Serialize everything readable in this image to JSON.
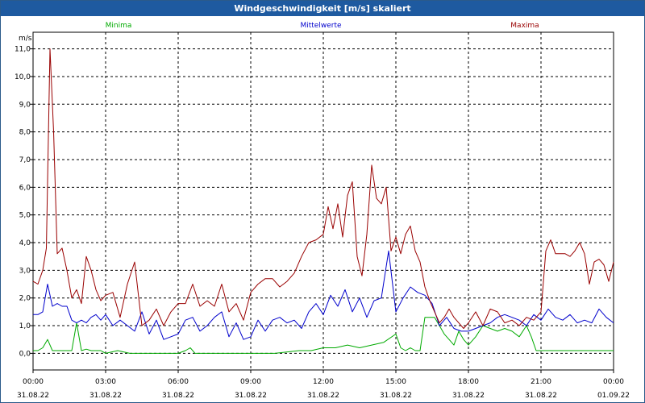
{
  "window": {
    "title": "Windgeschwindigkeit [m/s] skaliert"
  },
  "chart_data": {
    "type": "line",
    "title": "Windgeschwindigkeit [m/s] skaliert",
    "ylabel": "m/s",
    "ylim": [
      -0.6,
      11.6
    ],
    "y_ticks": [
      0.0,
      1.0,
      2.0,
      3.0,
      4.0,
      5.0,
      6.0,
      7.0,
      8.0,
      9.0,
      10.0,
      11.0
    ],
    "y_tick_labels": [
      "0,0",
      "1,0",
      "2,0",
      "3,0",
      "4,0",
      "5,0",
      "6,0",
      "7,0",
      "8,0",
      "9,0",
      "10,0",
      "11,0"
    ],
    "xlim": [
      0,
      24
    ],
    "x_ticks": [
      0,
      3,
      6,
      9,
      12,
      15,
      18,
      21,
      24
    ],
    "x_tick_times": [
      "00:00",
      "03:00",
      "06:00",
      "09:00",
      "12:00",
      "15:00",
      "18:00",
      "21:00",
      "00:00"
    ],
    "x_tick_dates": [
      "31.08.22",
      "31.08.22",
      "31.08.22",
      "31.08.22",
      "31.08.22",
      "31.08.22",
      "31.08.22",
      "31.08.22",
      "01.09.22"
    ],
    "grid": true,
    "legend_position": "top",
    "series": [
      {
        "name": "Minima",
        "color": "#00aa00",
        "x": [
          0,
          0.2,
          0.4,
          0.6,
          0.8,
          1.0,
          1.2,
          1.4,
          1.6,
          1.8,
          2.0,
          2.2,
          2.4,
          2.6,
          2.8,
          3.0,
          3.5,
          4.0,
          4.5,
          5.0,
          5.5,
          6.0,
          6.3,
          6.5,
          6.7,
          7.0,
          8.0,
          9.0,
          10.0,
          11.0,
          11.5,
          12.0,
          12.5,
          13.0,
          13.5,
          14.0,
          14.5,
          15.0,
          15.2,
          15.4,
          15.6,
          15.8,
          16.0,
          16.2,
          16.4,
          16.6,
          16.8,
          17.0,
          17.2,
          17.4,
          17.6,
          17.8,
          18.0,
          18.3,
          18.6,
          18.9,
          19.2,
          19.5,
          19.8,
          20.1,
          20.4,
          20.6,
          20.8,
          21.0,
          21.5,
          22.0,
          22.5,
          23.0,
          23.5,
          24.0
        ],
        "y": [
          0.1,
          0.1,
          0.2,
          0.5,
          0.1,
          0.1,
          0.1,
          0.1,
          0.1,
          1.1,
          0.1,
          0.15,
          0.1,
          0.1,
          0.1,
          0.0,
          0.1,
          0.0,
          0.0,
          0.0,
          0.0,
          0.0,
          0.1,
          0.2,
          0.0,
          0.0,
          0.0,
          0.0,
          0.0,
          0.1,
          0.1,
          0.2,
          0.2,
          0.3,
          0.2,
          0.3,
          0.4,
          0.7,
          0.2,
          0.1,
          0.2,
          0.1,
          0.1,
          1.3,
          1.3,
          1.3,
          1.0,
          0.7,
          0.5,
          0.3,
          0.8,
          0.5,
          0.3,
          0.6,
          1.0,
          0.9,
          0.8,
          0.9,
          0.8,
          0.6,
          1.0,
          0.6,
          0.1,
          0.1,
          0.1,
          0.1,
          0.1,
          0.1,
          0.1,
          0.1
        ]
      },
      {
        "name": "Mittelwerte",
        "color": "#0000cc",
        "x": [
          0,
          0.2,
          0.4,
          0.6,
          0.8,
          1.0,
          1.2,
          1.4,
          1.6,
          1.8,
          2.0,
          2.2,
          2.4,
          2.6,
          2.8,
          3.0,
          3.3,
          3.6,
          3.9,
          4.2,
          4.5,
          4.8,
          5.1,
          5.4,
          5.7,
          6.0,
          6.3,
          6.6,
          6.9,
          7.2,
          7.5,
          7.8,
          8.1,
          8.4,
          8.7,
          9.0,
          9.3,
          9.6,
          9.9,
          10.2,
          10.5,
          10.8,
          11.1,
          11.4,
          11.7,
          12.0,
          12.3,
          12.6,
          12.9,
          13.2,
          13.5,
          13.8,
          14.1,
          14.4,
          14.7,
          15.0,
          15.3,
          15.6,
          15.9,
          16.2,
          16.5,
          16.8,
          17.1,
          17.4,
          17.7,
          18.0,
          18.3,
          18.6,
          18.9,
          19.2,
          19.5,
          19.8,
          20.1,
          20.4,
          20.7,
          21.0,
          21.3,
          21.6,
          21.9,
          22.2,
          22.5,
          22.8,
          23.1,
          23.4,
          23.7,
          24.0
        ],
        "y": [
          1.4,
          1.4,
          1.5,
          2.5,
          1.7,
          1.8,
          1.7,
          1.7,
          1.2,
          1.1,
          1.2,
          1.1,
          1.3,
          1.4,
          1.2,
          1.4,
          1.0,
          1.2,
          1.0,
          0.8,
          1.5,
          0.7,
          1.2,
          0.5,
          0.6,
          0.7,
          1.2,
          1.3,
          0.8,
          1.0,
          1.3,
          1.5,
          0.6,
          1.1,
          0.5,
          0.6,
          1.2,
          0.8,
          1.2,
          1.3,
          1.1,
          1.2,
          0.9,
          1.5,
          1.8,
          1.4,
          2.1,
          1.7,
          2.3,
          1.5,
          2.0,
          1.3,
          1.9,
          2.0,
          3.7,
          1.5,
          2.0,
          2.4,
          2.2,
          2.1,
          1.8,
          1.0,
          1.3,
          0.9,
          0.8,
          0.8,
          0.9,
          1.0,
          1.1,
          1.3,
          1.4,
          1.3,
          1.2,
          1.0,
          1.4,
          1.2,
          1.6,
          1.3,
          1.2,
          1.4,
          1.1,
          1.2,
          1.1,
          1.6,
          1.3,
          1.1
        ]
      },
      {
        "name": "Maxima",
        "color": "#990000",
        "x": [
          0,
          0.2,
          0.4,
          0.55,
          0.7,
          0.85,
          1.0,
          1.2,
          1.4,
          1.6,
          1.8,
          2.0,
          2.2,
          2.4,
          2.6,
          2.8,
          3.0,
          3.3,
          3.6,
          3.9,
          4.2,
          4.5,
          4.8,
          5.1,
          5.4,
          5.7,
          6.0,
          6.3,
          6.6,
          6.9,
          7.2,
          7.5,
          7.8,
          8.1,
          8.4,
          8.7,
          9.0,
          9.3,
          9.6,
          9.9,
          10.2,
          10.5,
          10.8,
          11.1,
          11.4,
          11.7,
          12.0,
          12.2,
          12.4,
          12.6,
          12.8,
          13.0,
          13.2,
          13.4,
          13.6,
          13.8,
          14.0,
          14.2,
          14.4,
          14.6,
          14.8,
          15.0,
          15.2,
          15.4,
          15.6,
          15.8,
          16.0,
          16.2,
          16.4,
          16.6,
          16.8,
          17.0,
          17.2,
          17.4,
          17.6,
          17.8,
          18.0,
          18.3,
          18.6,
          18.9,
          19.2,
          19.5,
          19.8,
          20.1,
          20.4,
          20.7,
          21.0,
          21.2,
          21.4,
          21.6,
          21.8,
          22.0,
          22.2,
          22.4,
          22.6,
          22.8,
          23.0,
          23.2,
          23.4,
          23.6,
          23.8,
          24.0
        ],
        "y": [
          2.6,
          2.5,
          3.0,
          3.8,
          11.0,
          8.0,
          3.6,
          3.8,
          3.0,
          2.0,
          2.3,
          1.8,
          3.5,
          3.0,
          2.3,
          1.9,
          2.1,
          2.2,
          1.3,
          2.5,
          3.3,
          1.0,
          1.2,
          1.6,
          1.0,
          1.5,
          1.8,
          1.8,
          2.5,
          1.7,
          1.9,
          1.7,
          2.5,
          1.5,
          1.8,
          1.2,
          2.2,
          2.5,
          2.7,
          2.7,
          2.4,
          2.6,
          2.9,
          3.5,
          4.0,
          4.1,
          4.3,
          5.3,
          4.5,
          5.4,
          4.2,
          5.7,
          6.2,
          3.5,
          2.8,
          4.3,
          6.8,
          5.6,
          5.4,
          6.0,
          3.7,
          4.2,
          3.6,
          4.3,
          4.6,
          3.7,
          3.3,
          2.4,
          1.9,
          1.5,
          1.1,
          1.3,
          1.6,
          1.3,
          1.1,
          0.9,
          1.1,
          1.5,
          1.0,
          1.6,
          1.5,
          1.1,
          1.2,
          1.0,
          1.3,
          1.2,
          1.5,
          3.7,
          4.1,
          3.6,
          3.6,
          3.6,
          3.5,
          3.7,
          4.0,
          3.6,
          2.5,
          3.3,
          3.4,
          3.2,
          2.6,
          3.3
        ]
      }
    ]
  }
}
